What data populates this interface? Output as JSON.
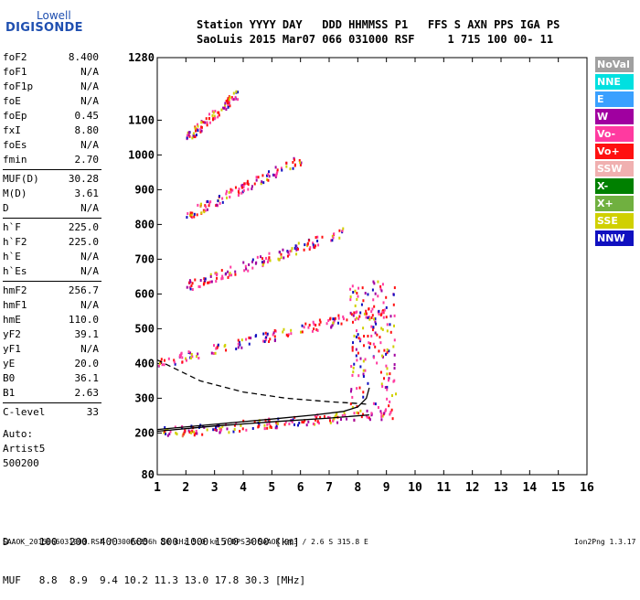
{
  "logo": {
    "line1": "Lowell",
    "line2": "DIGISONDE"
  },
  "header": {
    "row1": "Station YYYY DAY   DDD HHMMSS P1   FFS S AXN PPS IGA PS",
    "row2": "SaoLuis 2015 Mar07 066 031000 RSF     1 715 100 00- 11"
  },
  "parameters": [
    {
      "label": "foF2",
      "value": "8.400"
    },
    {
      "label": "foF1",
      "value": "N/A"
    },
    {
      "label": "foF1p",
      "value": "N/A"
    },
    {
      "label": "foE",
      "value": "N/A"
    },
    {
      "label": "foEp",
      "value": "0.45"
    },
    {
      "label": "fxI",
      "value": "8.80"
    },
    {
      "label": "foEs",
      "value": "N/A"
    },
    {
      "label": "fmin",
      "value": "2.70"
    },
    {
      "label": "MUF(D)",
      "value": "30.28"
    },
    {
      "label": "M(D)",
      "value": "3.61"
    },
    {
      "label": "D",
      "value": "N/A"
    },
    {
      "label": "h`F",
      "value": "225.0"
    },
    {
      "label": "h`F2",
      "value": "225.0"
    },
    {
      "label": "h`E",
      "value": "N/A"
    },
    {
      "label": "h`Es",
      "value": "N/A"
    },
    {
      "label": "hmF2",
      "value": "256.7"
    },
    {
      "label": "hmF1",
      "value": "N/A"
    },
    {
      "label": "hmE",
      "value": "110.0"
    },
    {
      "label": "yF2",
      "value": "39.1"
    },
    {
      "label": "yF1",
      "value": "N/A"
    },
    {
      "label": "yE",
      "value": "20.0"
    },
    {
      "label": "B0",
      "value": "36.1"
    },
    {
      "label": "B1",
      "value": "2.63"
    },
    {
      "label": "C-level",
      "value": "33"
    }
  ],
  "autoscaling": [
    "Auto:",
    "Artist5",
    "500200"
  ],
  "legend": [
    {
      "label": "NoVal",
      "color": "#a0a0a0"
    },
    {
      "label": "NNE",
      "color": "#00e0e0"
    },
    {
      "label": "E",
      "color": "#3aa0ff"
    },
    {
      "label": "W",
      "color": "#a000a0"
    },
    {
      "label": "Vo-",
      "color": "#ff3aa0"
    },
    {
      "label": "Vo+",
      "color": "#ff1010"
    },
    {
      "label": "SSW",
      "color": "#f0b0b0"
    },
    {
      "label": "X-",
      "color": "#008000"
    },
    {
      "label": "X+",
      "color": "#70b040"
    },
    {
      "label": "SSE",
      "color": "#d0d000"
    },
    {
      "label": "NNW",
      "color": "#1010c0"
    }
  ],
  "bottom_table": {
    "row1": "D     100  200  400  600  800 1000 1500 3000 [km]",
    "row2": "MUF   8.8  8.9  9.4 10.2 11.3 13.0 17.8 30.3 [MHz]"
  },
  "footer": {
    "left": "SAAOK_2015066031000.RSF / 300fx256h 50 kHz 5.0 km / DPS-4 SAAOK 903 / 2.6 S 315.8 E",
    "right": "Ion2Png 1.3.17"
  },
  "chart_data": {
    "type": "scatter",
    "title": "",
    "xlabel": "",
    "ylabel": "",
    "xlim": [
      1,
      16
    ],
    "ylim": [
      80,
      1280
    ],
    "x_ticks": [
      "1",
      "2",
      "3",
      "4",
      "5",
      "6",
      "7",
      "8",
      "9",
      "10",
      "11",
      "12",
      "13",
      "14",
      "15",
      "16"
    ],
    "y_ticks": [
      "80",
      "200",
      "300",
      "400",
      "500",
      "600",
      "700",
      "800",
      "900",
      "1000",
      "1100",
      "1280"
    ],
    "traces": [
      {
        "name": "F-trace 1st hop",
        "x_range": [
          1.2,
          9.2
        ],
        "y_start": 205,
        "y_end": 260
      },
      {
        "name": "F-trace 2nd hop",
        "x_range": [
          1.0,
          9.0
        ],
        "y_start": 405,
        "y_end": 560
      },
      {
        "name": "F-trace 3rd hop",
        "x_range": [
          2.0,
          7.5
        ],
        "y_start": 625,
        "y_end": 780
      },
      {
        "name": "F-trace 4th hop",
        "x_range": [
          2.0,
          6.0
        ],
        "y_start": 830,
        "y_end": 990
      },
      {
        "name": "F-trace 5th hop",
        "x_range": [
          2.0,
          3.8
        ],
        "y_start": 1050,
        "y_end": 1180
      }
    ],
    "profile_lower": [
      [
        1.0,
        205
      ],
      [
        3.0,
        220
      ],
      [
        5.0,
        232
      ],
      [
        7.0,
        243
      ],
      [
        8.4,
        252
      ]
    ],
    "profile_dashed": [
      [
        1.0,
        410
      ],
      [
        2.5,
        350
      ],
      [
        4.0,
        318
      ],
      [
        5.5,
        300
      ],
      [
        7.0,
        290
      ],
      [
        8.0,
        285
      ],
      [
        8.4,
        282
      ]
    ],
    "profile_upper": [
      [
        1.0,
        210
      ],
      [
        3.0,
        225
      ],
      [
        5.0,
        240
      ],
      [
        6.5,
        252
      ],
      [
        7.5,
        262
      ],
      [
        8.0,
        275
      ],
      [
        8.3,
        300
      ],
      [
        8.4,
        330
      ]
    ]
  }
}
